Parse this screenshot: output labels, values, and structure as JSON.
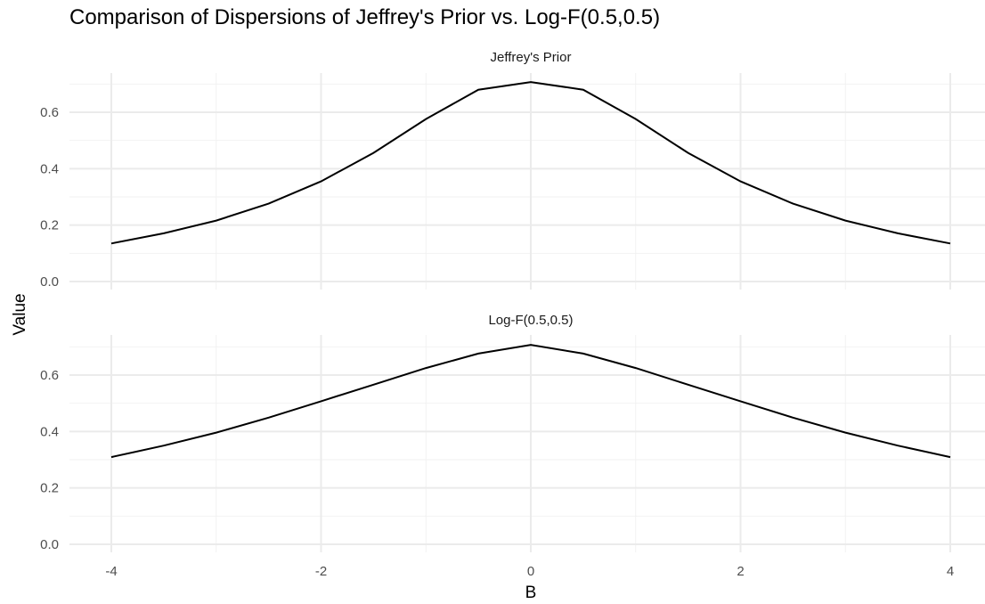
{
  "chart_data": {
    "type": "line",
    "title": "Comparison of Dispersions of Jeffrey's Prior vs. Log-F(0.5,0.5)",
    "xlabel": "B",
    "ylabel": "Value",
    "xlim": [
      -4,
      4
    ],
    "ylim": [
      0,
      0.7071
    ],
    "x_ticks": [
      "-4",
      "-2",
      "0",
      "2",
      "4"
    ],
    "y_ticks": [
      "0.0",
      "0.2",
      "0.4",
      "0.6"
    ],
    "grid": true,
    "facet_layout": "stacked vertically, shared x axis",
    "colors": {
      "line": "#000000",
      "grid": "#ebebeb"
    },
    "panels": [
      {
        "name": "Jeffrey's Prior",
        "x": [
          -4,
          -3.5,
          -3,
          -2.5,
          -2,
          -1.5,
          -1,
          -0.5,
          0,
          0.5,
          1,
          1.5,
          2,
          2.5,
          3,
          3.5,
          4
        ],
        "values": [
          0.135,
          0.171,
          0.216,
          0.276,
          0.355,
          0.456,
          0.576,
          0.68,
          0.707,
          0.68,
          0.576,
          0.456,
          0.355,
          0.276,
          0.216,
          0.171,
          0.135
        ]
      },
      {
        "name": "Log-F(0.5,0.5)",
        "x": [
          -4,
          -3.5,
          -3,
          -2.5,
          -2,
          -1.5,
          -1,
          -0.5,
          0,
          0.5,
          1,
          1.5,
          2,
          2.5,
          3,
          3.5,
          4
        ],
        "values": [
          0.309,
          0.35,
          0.396,
          0.449,
          0.507,
          0.566,
          0.625,
          0.676,
          0.707,
          0.676,
          0.625,
          0.566,
          0.507,
          0.449,
          0.396,
          0.35,
          0.309
        ]
      }
    ]
  }
}
